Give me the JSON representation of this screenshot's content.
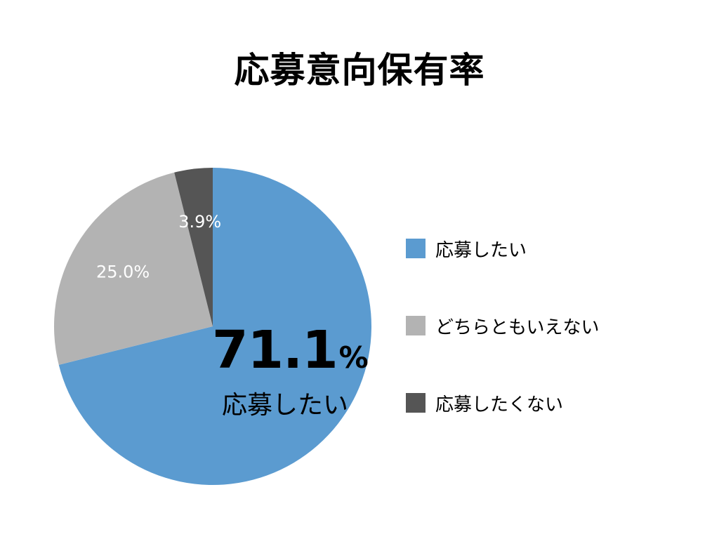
{
  "chart_data": {
    "type": "pie",
    "title": "応募意向保有率",
    "slices": [
      {
        "label": "応募したい",
        "value": 71.1,
        "value_text": "",
        "color": "#5b9bd0"
      },
      {
        "label": "どちらともいえない",
        "value": 25.0,
        "value_text": "25.0%",
        "color": "#b3b3b3"
      },
      {
        "label": "応募したくない",
        "value": 3.9,
        "value_text": "3.9%",
        "color": "#555555"
      }
    ],
    "start_angle": "12 o'clock",
    "direction": "clockwise",
    "highlight": {
      "value": "71.1",
      "unit": "%",
      "label": "応募したい"
    },
    "legend_position": "right"
  }
}
